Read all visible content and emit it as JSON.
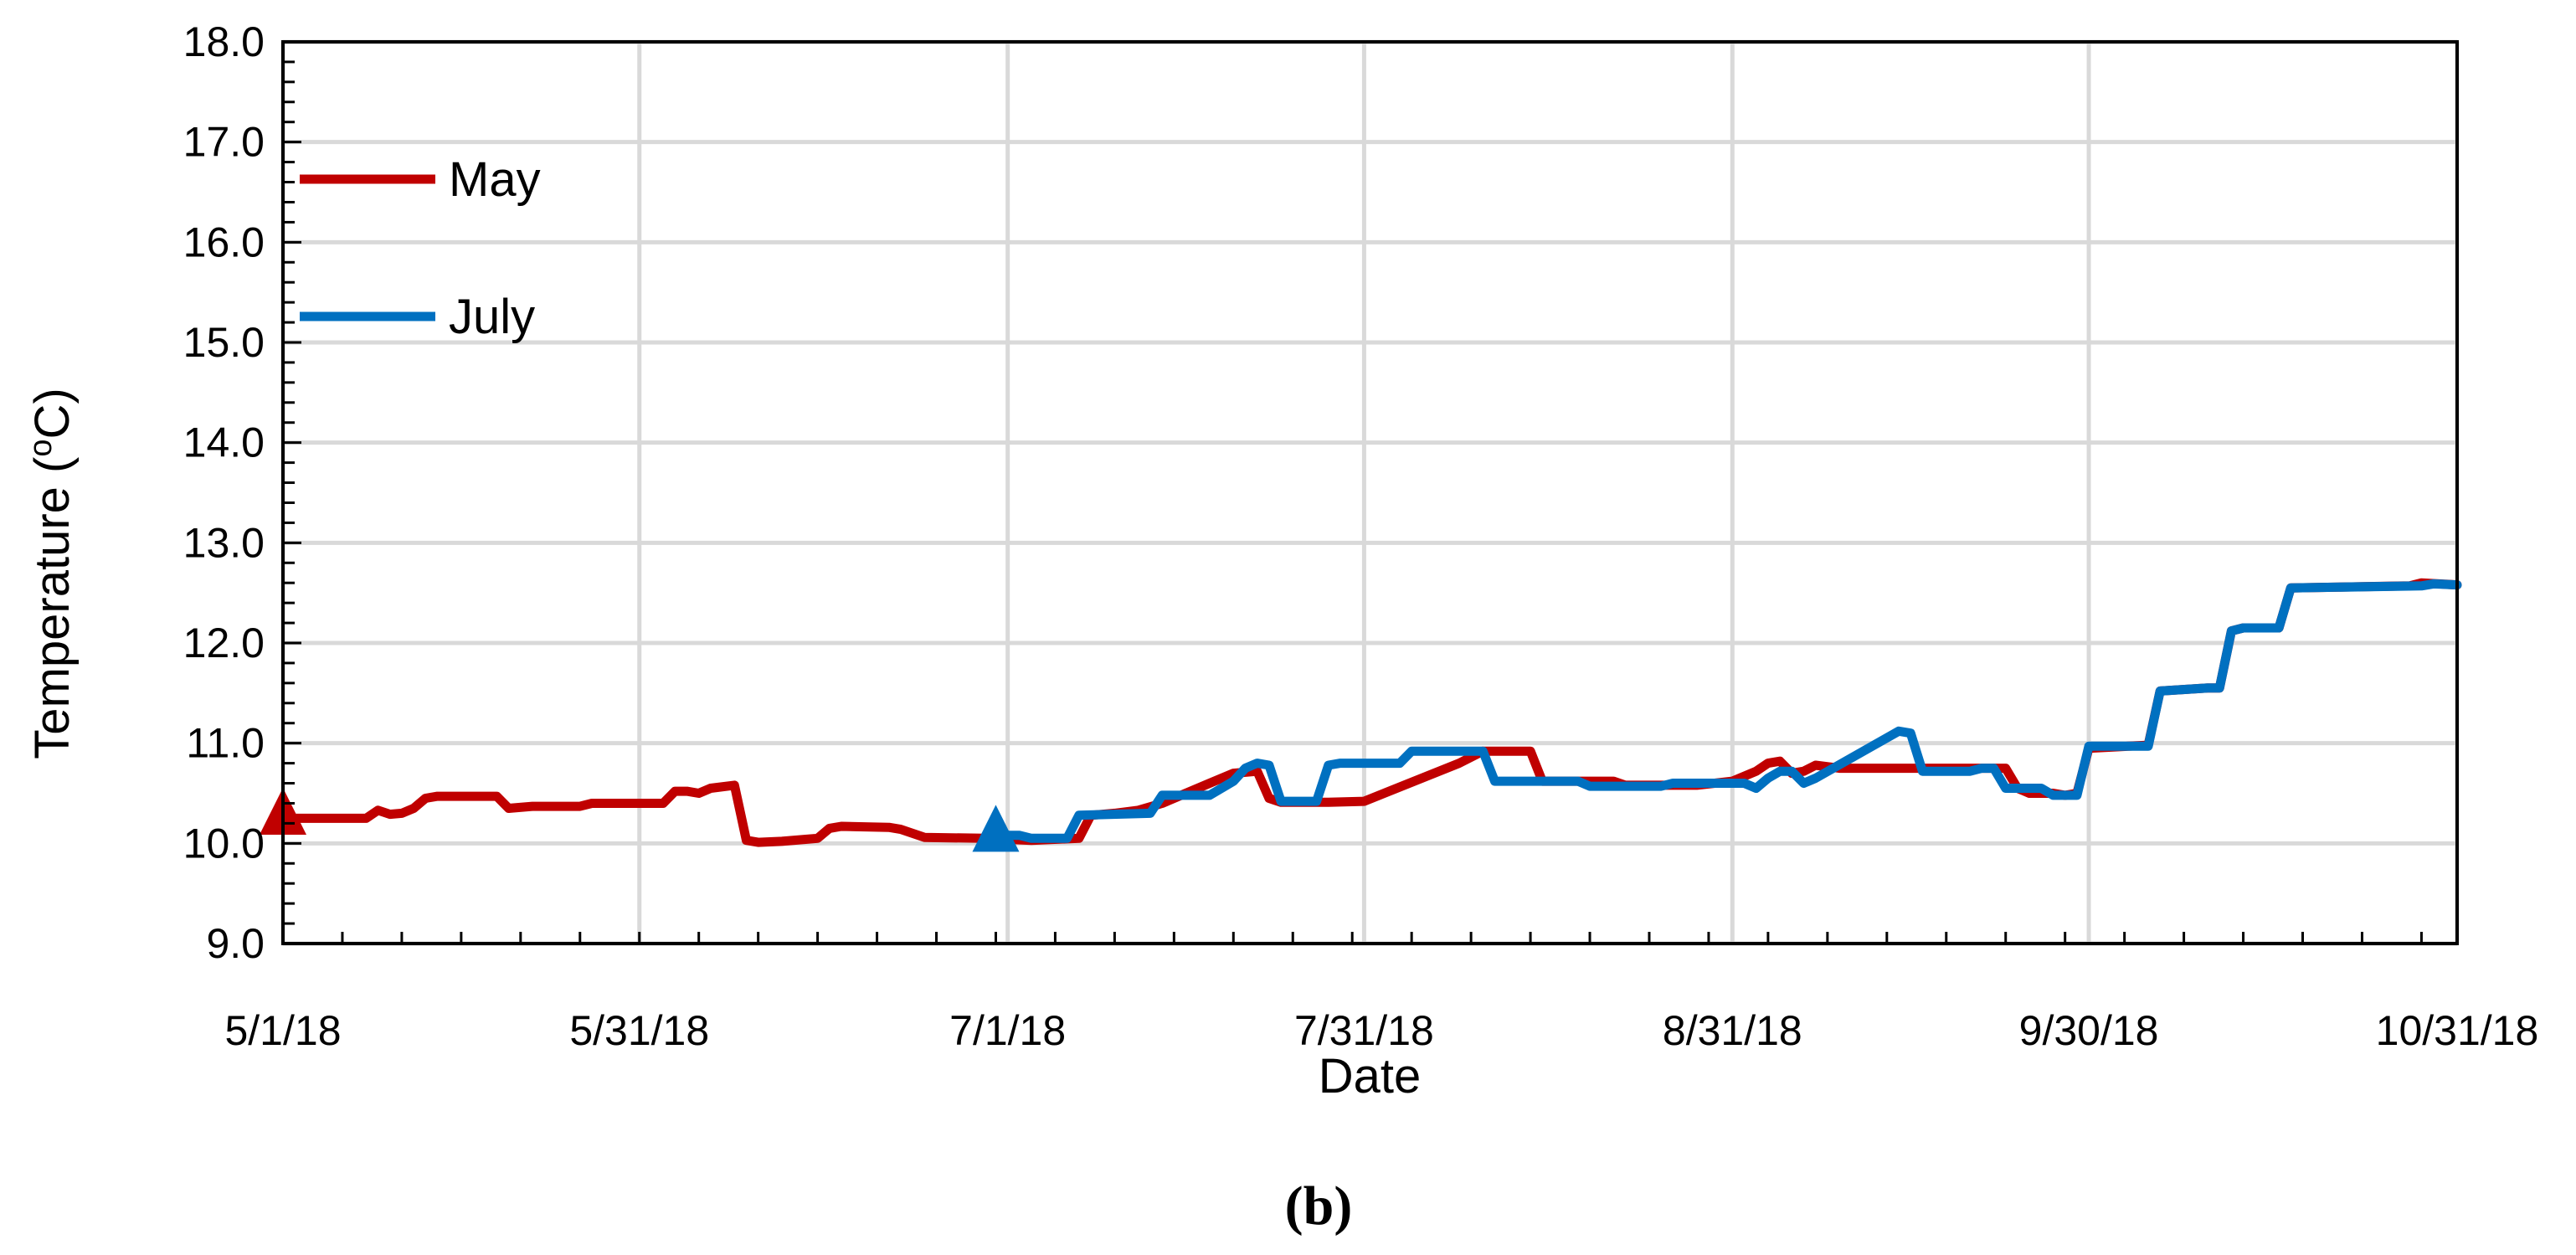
{
  "chart_data": {
    "type": "line",
    "title": "",
    "xlabel": "Date",
    "ylabel": "Temperature (oC)",
    "ylabel_parts": {
      "before": "Temperature (",
      "sup": "o",
      "after": "C)"
    },
    "panel_label": "(b)",
    "ylim": [
      9.0,
      18.0
    ],
    "y_ticks": [
      "9.0",
      "10.0",
      "11.0",
      "12.0",
      "13.0",
      "14.0",
      "15.0",
      "16.0",
      "17.0",
      "18.0"
    ],
    "x_range": [
      "2018-05-01",
      "2018-10-31"
    ],
    "x_ticks": [
      {
        "date": "2018-05-01",
        "label": "5/1/18"
      },
      {
        "date": "2018-05-31",
        "label": "5/31/18"
      },
      {
        "date": "2018-07-01",
        "label": "7/1/18"
      },
      {
        "date": "2018-07-31",
        "label": "7/31/18"
      },
      {
        "date": "2018-08-31",
        "label": "8/31/18"
      },
      {
        "date": "2018-09-30",
        "label": "9/30/18"
      },
      {
        "date": "2018-10-31",
        "label": "10/31/18"
      }
    ],
    "grid": true,
    "legend": "top-left",
    "series": [
      {
        "name": "May",
        "color": "#C00000",
        "start_marker": {
          "date": "2018-05-01",
          "value": 10.32
        },
        "points": [
          [
            "2018-05-01",
            10.25
          ],
          [
            "2018-05-08",
            10.25
          ],
          [
            "2018-05-09",
            10.33
          ],
          [
            "2018-05-10",
            10.29
          ],
          [
            "2018-05-11",
            10.3
          ],
          [
            "2018-05-12",
            10.35
          ],
          [
            "2018-05-13",
            10.45
          ],
          [
            "2018-05-14",
            10.47
          ],
          [
            "2018-05-19",
            10.47
          ],
          [
            "2018-05-20",
            10.35
          ],
          [
            "2018-05-22",
            10.37
          ],
          [
            "2018-05-26",
            10.37
          ],
          [
            "2018-05-27",
            10.4
          ],
          [
            "2018-05-31",
            10.4
          ],
          [
            "2018-06-02",
            10.4
          ],
          [
            "2018-06-03",
            10.52
          ],
          [
            "2018-06-04",
            10.52
          ],
          [
            "2018-06-05",
            10.5
          ],
          [
            "2018-06-06",
            10.55
          ],
          [
            "2018-06-08",
            10.58
          ],
          [
            "2018-06-09",
            10.03
          ],
          [
            "2018-06-10",
            10.01
          ],
          [
            "2018-06-12",
            10.02
          ],
          [
            "2018-06-14",
            10.04
          ],
          [
            "2018-06-15",
            10.05
          ],
          [
            "2018-06-16",
            10.15
          ],
          [
            "2018-06-17",
            10.17
          ],
          [
            "2018-06-21",
            10.16
          ],
          [
            "2018-06-22",
            10.14
          ],
          [
            "2018-06-24",
            10.06
          ],
          [
            "2018-06-29",
            10.05
          ],
          [
            "2018-07-03",
            10.03
          ],
          [
            "2018-07-07",
            10.05
          ],
          [
            "2018-07-08",
            10.28
          ],
          [
            "2018-07-10",
            10.3
          ],
          [
            "2018-07-12",
            10.33
          ],
          [
            "2018-07-14",
            10.4
          ],
          [
            "2018-07-16",
            10.5
          ],
          [
            "2018-07-18",
            10.6
          ],
          [
            "2018-07-20",
            10.7
          ],
          [
            "2018-07-22",
            10.72
          ],
          [
            "2018-07-23",
            10.45
          ],
          [
            "2018-07-24",
            10.41
          ],
          [
            "2018-07-28",
            10.41
          ],
          [
            "2018-07-31",
            10.42
          ],
          [
            "2018-08-08",
            10.8
          ],
          [
            "2018-08-10",
            10.92
          ],
          [
            "2018-08-14",
            10.92
          ],
          [
            "2018-08-15",
            10.62
          ],
          [
            "2018-08-21",
            10.62
          ],
          [
            "2018-08-22",
            10.58
          ],
          [
            "2018-08-28",
            10.58
          ],
          [
            "2018-08-31",
            10.62
          ],
          [
            "2018-09-02",
            10.72
          ],
          [
            "2018-09-03",
            10.8
          ],
          [
            "2018-09-04",
            10.82
          ],
          [
            "2018-09-05",
            10.7
          ],
          [
            "2018-09-06",
            10.72
          ],
          [
            "2018-09-07",
            10.78
          ],
          [
            "2018-09-09",
            10.75
          ],
          [
            "2018-09-20",
            10.75
          ],
          [
            "2018-09-23",
            10.75
          ],
          [
            "2018-09-24",
            10.55
          ],
          [
            "2018-09-25",
            10.5
          ],
          [
            "2018-09-27",
            10.5
          ],
          [
            "2018-09-28",
            10.48
          ],
          [
            "2018-09-29",
            10.5
          ],
          [
            "2018-09-30",
            10.95
          ],
          [
            "2018-10-05",
            10.98
          ],
          [
            "2018-10-06",
            11.52
          ],
          [
            "2018-10-10",
            11.55
          ],
          [
            "2018-10-11",
            11.55
          ],
          [
            "2018-10-12",
            12.12
          ],
          [
            "2018-10-13",
            12.15
          ],
          [
            "2018-10-16",
            12.15
          ],
          [
            "2018-10-17",
            12.55
          ],
          [
            "2018-10-27",
            12.57
          ],
          [
            "2018-10-28",
            12.6
          ],
          [
            "2018-10-31",
            12.58
          ]
        ]
      },
      {
        "name": "July",
        "color": "#0070C0",
        "start_marker": {
          "date": "2018-06-30",
          "value": 10.15
        },
        "points": [
          [
            "2018-06-30",
            10.08
          ],
          [
            "2018-07-02",
            10.08
          ],
          [
            "2018-07-03",
            10.05
          ],
          [
            "2018-07-06",
            10.05
          ],
          [
            "2018-07-07",
            10.28
          ],
          [
            "2018-07-13",
            10.3
          ],
          [
            "2018-07-14",
            10.48
          ],
          [
            "2018-07-18",
            10.48
          ],
          [
            "2018-07-20",
            10.62
          ],
          [
            "2018-07-21",
            10.75
          ],
          [
            "2018-07-22",
            10.8
          ],
          [
            "2018-07-23",
            10.78
          ],
          [
            "2018-07-24",
            10.42
          ],
          [
            "2018-07-27",
            10.42
          ],
          [
            "2018-07-28",
            10.78
          ],
          [
            "2018-07-29",
            10.8
          ],
          [
            "2018-08-03",
            10.8
          ],
          [
            "2018-08-04",
            10.92
          ],
          [
            "2018-08-10",
            10.92
          ],
          [
            "2018-08-11",
            10.62
          ],
          [
            "2018-08-18",
            10.62
          ],
          [
            "2018-08-19",
            10.57
          ],
          [
            "2018-08-25",
            10.57
          ],
          [
            "2018-08-26",
            10.6
          ],
          [
            "2018-09-01",
            10.6
          ],
          [
            "2018-09-02",
            10.55
          ],
          [
            "2018-09-03",
            10.65
          ],
          [
            "2018-09-04",
            10.72
          ],
          [
            "2018-09-05",
            10.72
          ],
          [
            "2018-09-06",
            10.6
          ],
          [
            "2018-09-07",
            10.65
          ],
          [
            "2018-09-14",
            11.12
          ],
          [
            "2018-09-15",
            11.1
          ],
          [
            "2018-09-16",
            10.72
          ],
          [
            "2018-09-20",
            10.72
          ],
          [
            "2018-09-21",
            10.75
          ],
          [
            "2018-09-22",
            10.75
          ],
          [
            "2018-09-23",
            10.55
          ],
          [
            "2018-09-26",
            10.55
          ],
          [
            "2018-09-27",
            10.48
          ],
          [
            "2018-09-29",
            10.48
          ],
          [
            "2018-09-30",
            10.97
          ],
          [
            "2018-10-05",
            10.97
          ],
          [
            "2018-10-06",
            11.52
          ],
          [
            "2018-10-10",
            11.55
          ],
          [
            "2018-10-11",
            11.55
          ],
          [
            "2018-10-12",
            12.12
          ],
          [
            "2018-10-13",
            12.15
          ],
          [
            "2018-10-16",
            12.15
          ],
          [
            "2018-10-17",
            12.55
          ],
          [
            "2018-10-28",
            12.57
          ],
          [
            "2018-10-29",
            12.59
          ],
          [
            "2018-10-31",
            12.58
          ]
        ]
      }
    ]
  }
}
